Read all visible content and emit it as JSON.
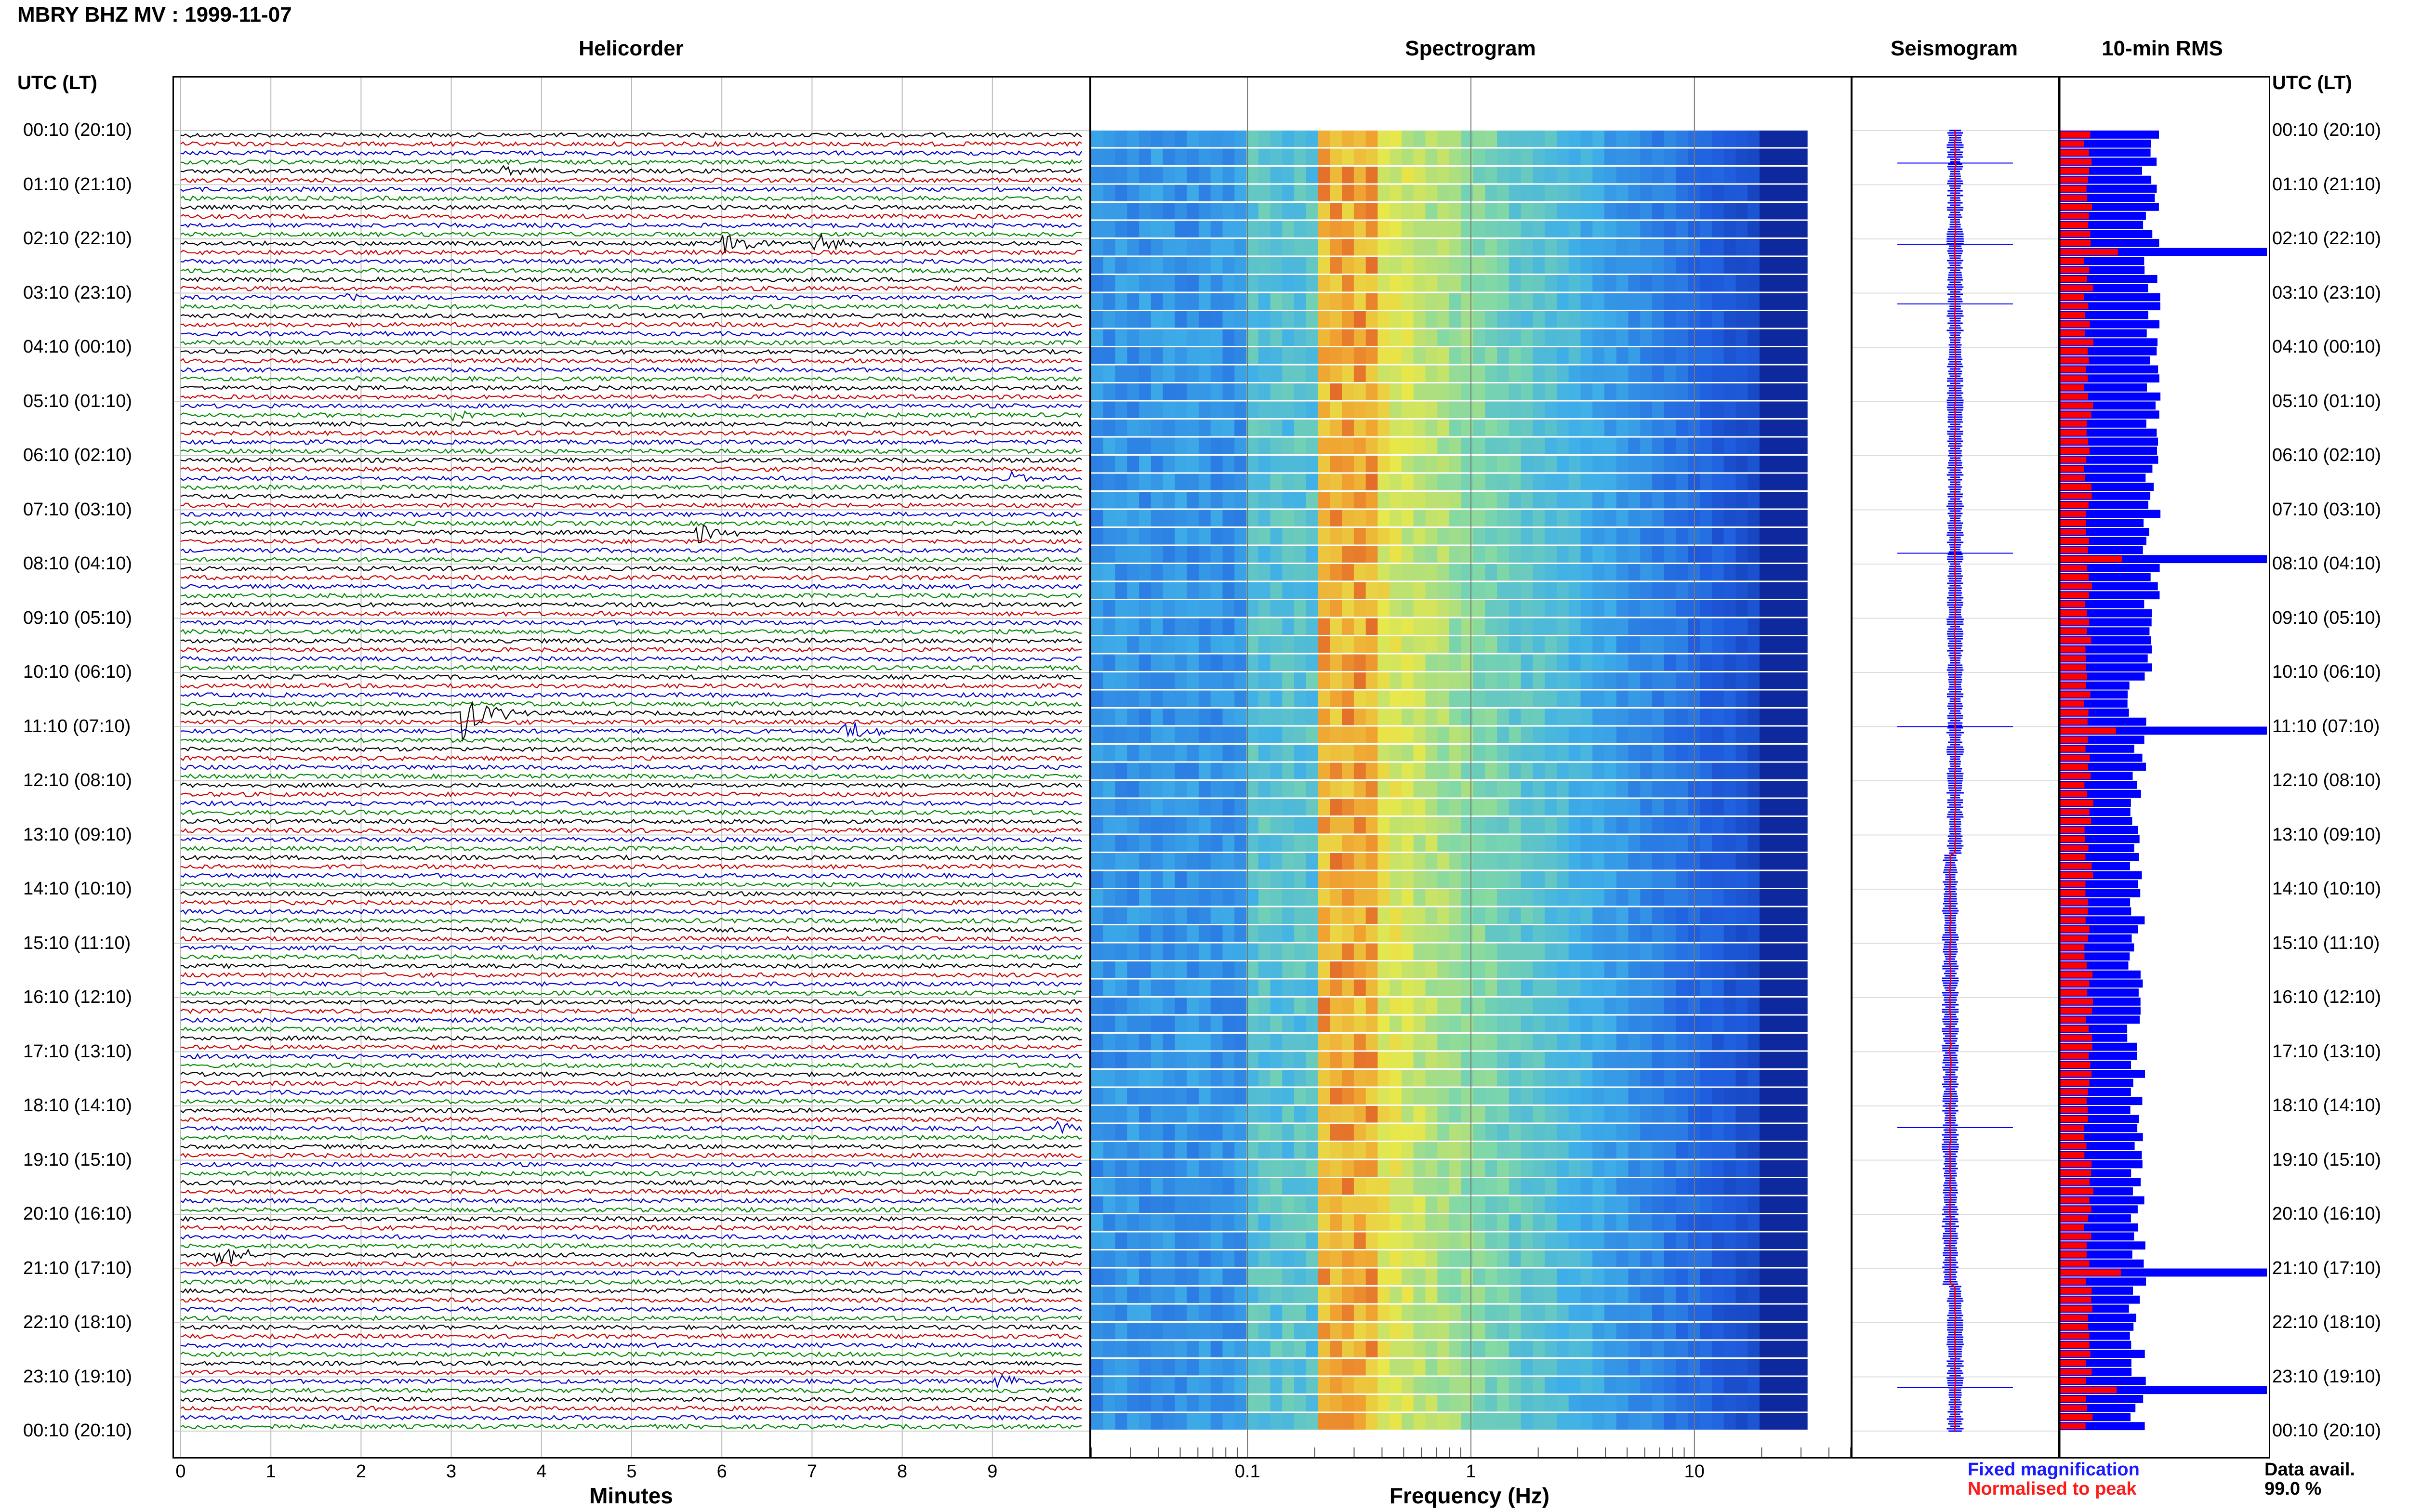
{
  "header": {
    "title": "MBRY BHZ MV : 1999-11-07"
  },
  "panels": {
    "helicorder_title": "Helicorder",
    "spectrogram_title": "Spectrogram",
    "seismogram_title": "Seismogram",
    "rms_title": "10-min RMS"
  },
  "axes": {
    "utc_head_left": "UTC (LT)",
    "utc_head_right": "UTC (LT)",
    "minutes_label": "Minutes",
    "frequency_label": "Frequency (Hz)",
    "minutes_ticks": [
      "0",
      "1",
      "2",
      "3",
      "4",
      "5",
      "6",
      "7",
      "8",
      "9"
    ],
    "frequency_ticks": [
      "0.1",
      "1",
      "10"
    ],
    "row_labels": [
      "00:10 (20:10)",
      "01:10 (21:10)",
      "02:10 (22:10)",
      "03:10 (23:10)",
      "04:10 (00:10)",
      "05:10 (01:10)",
      "06:10 (02:10)",
      "07:10 (03:10)",
      "08:10 (04:10)",
      "09:10 (05:10)",
      "10:10 (06:10)",
      "11:10 (07:10)",
      "12:10 (08:10)",
      "13:10 (09:10)",
      "14:10 (10:10)",
      "15:10 (11:10)",
      "16:10 (12:10)",
      "17:10 (13:10)",
      "18:10 (14:10)",
      "19:10 (15:10)",
      "20:10 (16:10)",
      "21:10 (17:10)",
      "22:10 (18:10)",
      "23:10 (19:10)",
      "00:10 (20:10)"
    ]
  },
  "legend": {
    "fixed": "Fixed magnification",
    "normalised": "Normalised to peak",
    "data_avail_label": "Data avail.",
    "data_avail_value": "99.0 %"
  },
  "colors": {
    "trace_cycle": [
      "#000000",
      "#cc0000",
      "#0000cc",
      "#008800"
    ],
    "fixed": "#0000ff",
    "normalised": "#ff0000"
  },
  "chart_data": [
    {
      "type": "line",
      "title": "Helicorder",
      "xlabel": "Minutes",
      "xlim": [
        0,
        10
      ],
      "rows": 144,
      "row_duration_min": 10,
      "events": [
        {
          "start_min": 3.5,
          "row_hour": 0.6,
          "amp": "small"
        },
        {
          "start_min": 6.0,
          "row_hour": 2.0,
          "amp": "medium"
        },
        {
          "start_min": 7.0,
          "row_hour": 2.0,
          "amp": "medium"
        },
        {
          "start_min": 1.8,
          "row_hour": 3.0,
          "amp": "small"
        },
        {
          "start_min": 3.0,
          "row_hour": 5.2,
          "amp": "small"
        },
        {
          "start_min": 9.2,
          "row_hour": 6.3,
          "amp": "small"
        },
        {
          "start_min": 5.7,
          "row_hour": 7.3,
          "amp": "medium"
        },
        {
          "start_min": 3.1,
          "row_hour": 10.7,
          "amp": "large"
        },
        {
          "start_min": 7.3,
          "row_hour": 11.0,
          "amp": "medium"
        },
        {
          "start_min": 9.7,
          "row_hour": 18.3,
          "amp": "small"
        },
        {
          "start_min": 0.4,
          "row_hour": 20.6,
          "amp": "medium"
        },
        {
          "start_min": 9.0,
          "row_hour": 23.0,
          "amp": "medium"
        }
      ]
    },
    {
      "type": "heatmap",
      "title": "Spectrogram",
      "xlabel": "Frequency (Hz)",
      "xscale": "log",
      "xlim": [
        0.02,
        50
      ],
      "peak_band_hz": [
        0.2,
        0.4
      ],
      "cutoff_hz": 20
    },
    {
      "type": "line",
      "title": "Seismogram",
      "series": [
        {
          "name": "Fixed magnification",
          "color": "#0000ff"
        },
        {
          "name": "Normalised to peak",
          "color": "#ff0000"
        }
      ]
    },
    {
      "type": "bar",
      "title": "10-min RMS",
      "orientation": "horizontal",
      "series": [
        {
          "name": "Fixed magnification",
          "color": "#0000ff"
        },
        {
          "name": "Normalised to peak",
          "color": "#ff0000"
        }
      ],
      "peaks_hour": [
        2.1,
        7.8,
        11.0,
        21.0,
        23.2
      ]
    }
  ]
}
